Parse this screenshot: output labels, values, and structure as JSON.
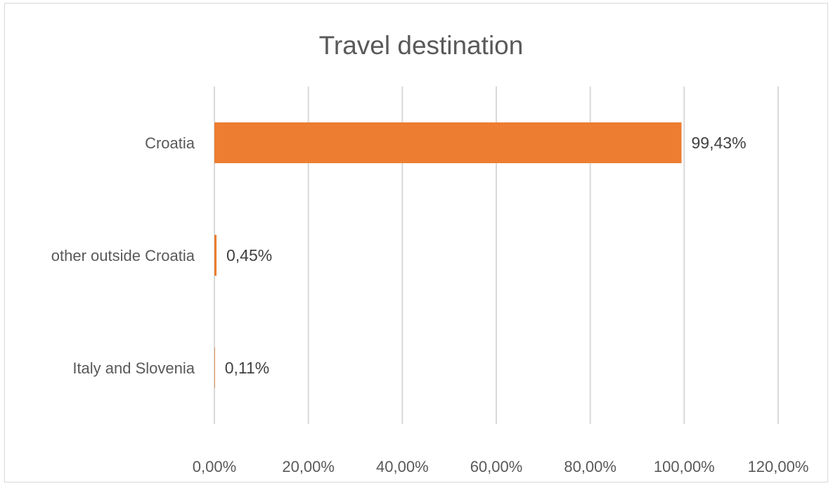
{
  "chart_data": {
    "type": "bar",
    "orientation": "horizontal",
    "title": "Travel destination",
    "categories": [
      "Croatia",
      "other outside Croatia",
      "Italy and Slovenia"
    ],
    "values": [
      99.43,
      0.45,
      0.11
    ],
    "data_labels": [
      "99,43%",
      "0,45%",
      "0,11%"
    ],
    "xlim": [
      0,
      120
    ],
    "x_ticks": [
      0,
      20,
      40,
      60,
      80,
      100,
      120
    ],
    "x_tick_labels": [
      "0,00%",
      "20,00%",
      "40,00%",
      "60,00%",
      "80,00%",
      "100,00%",
      "120,00%"
    ],
    "xlabel": "",
    "ylabel": "",
    "grid": "vertical",
    "legend": "none",
    "bar_color": "#ED7D31",
    "grid_color": "#D9D9D9"
  }
}
